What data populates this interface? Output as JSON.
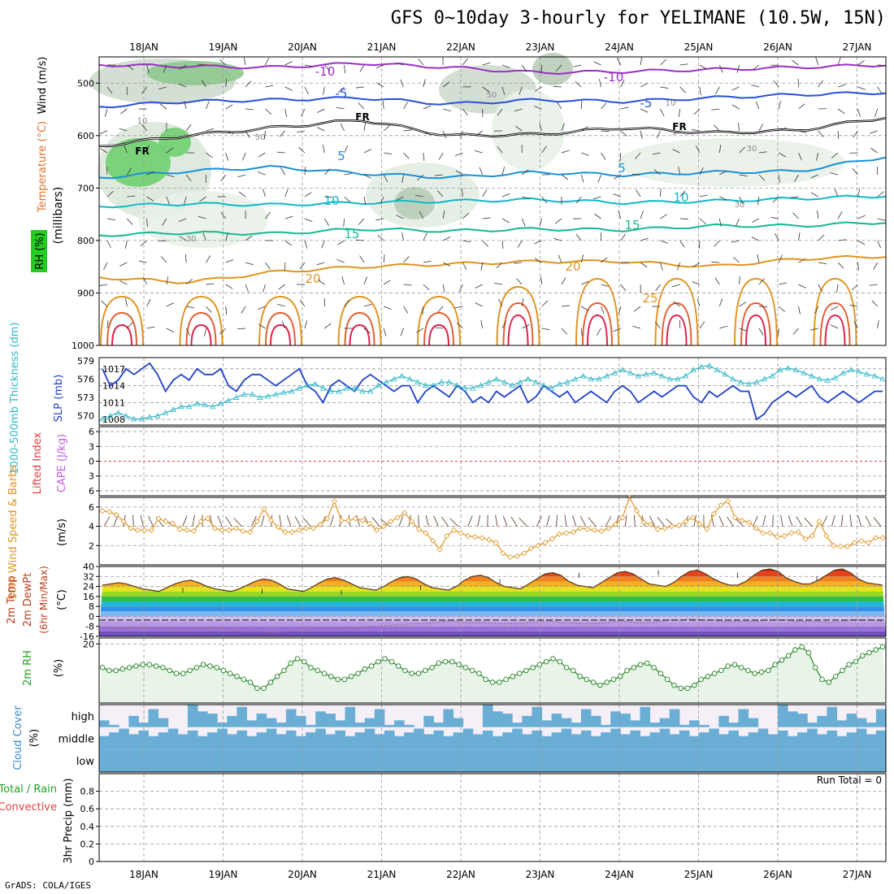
{
  "title": "GFS 0~10day 3-hourly for YELIMANE (10.5W, 15N)",
  "credit": "GrADS: COLA/IGES",
  "chart_data": [
    {
      "panel": "upper-air",
      "type": "line",
      "y_axis": {
        "label": "(millibars)",
        "ticks": [
          500,
          600,
          700,
          800,
          900,
          1000
        ],
        "range": [
          450,
          1000
        ]
      },
      "side_labels": [
        "Wind (m/s)",
        "Temperature (°C)",
        "RH (%)"
      ],
      "x_ticks": [
        "18JAN",
        "19JAN",
        "20JAN",
        "21JAN",
        "22JAN",
        "23JAN",
        "24JAN",
        "25JAN",
        "26JAN",
        "27JAN"
      ],
      "temperature_isotherms": [
        {
          "name": "-10",
          "color": "#9a2fc4",
          "level_mb": [
            465,
            468,
            470,
            462,
            470,
            480,
            478,
            474,
            470,
            465
          ]
        },
        {
          "name": "-5",
          "color": "#2850d8",
          "level_mb": [
            545,
            535,
            532,
            528,
            540,
            532,
            535,
            528,
            522,
            518
          ]
        },
        {
          "name": "FR",
          "color": "#000000",
          "level_mb": [
            620,
            600,
            585,
            570,
            600,
            598,
            585,
            595,
            590,
            565
          ]
        },
        {
          "name": "5",
          "color": "#1a90d8",
          "level_mb": [
            680,
            668,
            660,
            672,
            680,
            670,
            675,
            670,
            668,
            640
          ]
        },
        {
          "name": "10",
          "color": "#10b8c8",
          "level_mb": [
            735,
            730,
            732,
            728,
            725,
            722,
            728,
            725,
            720,
            715
          ]
        },
        {
          "name": "15",
          "color": "#16b890",
          "level_mb": [
            790,
            785,
            787,
            778,
            782,
            778,
            780,
            772,
            772,
            765
          ]
        },
        {
          "name": "20",
          "color": "#e09420",
          "level_mb": [
            870,
            880,
            860,
            850,
            845,
            840,
            840,
            850,
            835,
            830
          ]
        }
      ],
      "isotherm_labels": [
        "-10",
        "-5",
        "FR",
        "5",
        "10",
        "15",
        "20",
        "25"
      ],
      "rh_labels": [
        "10",
        "30",
        "50"
      ]
    },
    {
      "panel": "thickness-slp",
      "type": "line",
      "left_ticks": [
        570,
        573,
        576,
        579
      ],
      "right_ticks": [
        1008,
        1011,
        1014,
        1017
      ],
      "left_label": "1000-500mb Thickness (dm)",
      "right_label": "SLP (mb)",
      "series": [
        {
          "name": "SLP (mb)",
          "color": "#2040c8",
          "axis": "right",
          "values": [
            1017,
            1014,
            1015,
            1017,
            1016,
            1017,
            1018,
            1016,
            1013,
            1015,
            1016,
            1015,
            1017,
            1016,
            1016,
            1017,
            1014,
            1013,
            1015,
            1016,
            1016,
            1015,
            1014,
            1015,
            1016,
            1017,
            1014,
            1013,
            1011,
            1014,
            1015,
            1014,
            1013,
            1015,
            1016,
            1015,
            1014,
            1013,
            1014,
            1014,
            1011,
            1013,
            1014,
            1013,
            1012,
            1014,
            1013,
            1011,
            1012,
            1011,
            1013,
            1012,
            1013,
            1014,
            1011,
            1012,
            1014,
            1013,
            1012,
            1013,
            1011,
            1012,
            1013,
            1012,
            1011,
            1013,
            1014,
            1013,
            1011,
            1012,
            1013,
            1012,
            1013,
            1014,
            1014,
            1012,
            1011,
            1013,
            1012,
            1013,
            1014,
            1013,
            1013,
            1008,
            1009,
            1011,
            1012,
            1013,
            1012,
            1013,
            1014,
            1012,
            1011,
            1012,
            1013,
            1012,
            1011,
            1012,
            1013,
            1013
          ],
          "y_range": [
            1007,
            1019
          ]
        },
        {
          "name": "1000-500mb Thickness (dm)",
          "color": "#30b8c8",
          "axis": "left",
          "values": [
            569.5,
            570,
            570.5,
            570,
            569.5,
            569.5,
            569.8,
            570,
            570.5,
            571,
            571.5,
            571.5,
            572,
            571.8,
            571.5,
            572,
            572.5,
            573,
            573.5,
            573.5,
            573,
            573.2,
            573.5,
            573.8,
            574,
            574.5,
            575,
            575.2,
            574.5,
            574,
            574,
            574.5,
            574.5,
            574,
            574,
            575,
            575.5,
            576,
            576.5,
            576,
            575.5,
            575,
            575,
            575.5,
            575.5,
            575,
            574.5,
            574.5,
            575,
            575.5,
            576,
            575.5,
            575,
            575.5,
            576,
            575.5,
            575,
            574.5,
            575.2,
            575.5,
            576,
            576.5,
            576,
            576,
            576.5,
            577,
            577.5,
            577,
            576.5,
            576.8,
            577,
            576.5,
            576,
            576,
            576.5,
            577.5,
            578,
            578.2,
            577.5,
            576.8,
            576,
            575.5,
            575.2,
            575.5,
            576,
            576.5,
            577.5,
            577.8,
            577.5,
            577,
            576.5,
            576,
            575.8,
            576.2,
            577,
            577.5,
            577.2,
            576.8,
            576.5,
            576
          ],
          "y_range": [
            568.5,
            579.5
          ]
        }
      ]
    },
    {
      "panel": "stability",
      "type": "line",
      "left_label": "Lifted Index",
      "right_label": "CAPE (J/kg)",
      "y_ticks": [
        -6,
        -3,
        0,
        3,
        6
      ],
      "y_tick_labels": [
        "6",
        "3",
        "0",
        "3",
        "6"
      ],
      "zero_line": 0
    },
    {
      "panel": "wind10m",
      "type": "line",
      "left_label": "10m Wind Speed & Barbs",
      "unit": "(m/s)",
      "y_ticks": [
        2,
        4,
        6
      ],
      "y_range": [
        0,
        7
      ],
      "series": [
        {
          "name": "10m Wind Speed",
          "color": "#e09420",
          "values": [
            5.6,
            5.5,
            5.2,
            4.5,
            3.8,
            3.6,
            3.6,
            3.6,
            4.8,
            4.5,
            4.3,
            3.7,
            3.6,
            3.5,
            4.5,
            4.8,
            3.8,
            3.6,
            3.6,
            3.8,
            3.5,
            3.4,
            4.5,
            5.8,
            4.6,
            3.9,
            3.4,
            3.4,
            3.6,
            3.8,
            3.8,
            4.2,
            4.8,
            6.6,
            4.6,
            4.6,
            4.8,
            4.6,
            4.3,
            3.6,
            4.0,
            4.5,
            4.9,
            5.4,
            4.5,
            3.7,
            3.3,
            2.5,
            1.6,
            3.0,
            3.6,
            3.3,
            3.0,
            2.9,
            2.8,
            2.6,
            2.3,
            1.2,
            0.8,
            0.9,
            1.2,
            1.7,
            2.0,
            2.3,
            2.7,
            3.2,
            3.3,
            3.4,
            3.8,
            3.7,
            3.6,
            3.5,
            3.8,
            4.2,
            4.9,
            7.0,
            5.6,
            4.4,
            4.2,
            3.7,
            3.8,
            4.0,
            4.1,
            4.5,
            4.9,
            4.2,
            3.7,
            5.3,
            6.2,
            6.6,
            4.9,
            4.6,
            4.4,
            3.8,
            3.3,
            3.3,
            2.9,
            3.0,
            3.3,
            3.4,
            2.7,
            3.0,
            4.5,
            3.0,
            2.0,
            1.9,
            1.9,
            2.3,
            2.5,
            2.3,
            2.8,
            2.8
          ]
        }
      ]
    },
    {
      "panel": "temp2m",
      "type": "area",
      "left_label": "2m Temp 2m DewPt (6hr Min/Max) (°C)",
      "y_ticks": [
        40,
        32,
        24,
        16,
        8,
        0,
        -8,
        -16
      ],
      "y_range": [
        -16,
        40
      ],
      "series": [
        {
          "name": "2m Temp",
          "values": [
            25,
            26,
            27,
            26,
            24,
            22,
            21,
            20,
            23,
            26,
            28,
            29,
            27,
            24,
            22,
            21,
            20,
            22,
            25,
            28,
            30,
            29,
            26,
            22,
            21,
            20,
            23,
            27,
            30,
            31,
            29,
            26,
            23,
            22,
            21,
            24,
            28,
            31,
            32,
            30,
            26,
            23,
            22,
            21,
            24,
            29,
            32,
            33,
            31,
            27,
            24,
            23,
            22,
            26,
            30,
            34,
            35,
            33,
            28,
            25,
            24,
            23,
            27,
            31,
            35,
            36,
            34,
            30,
            26,
            25,
            24,
            27,
            32,
            36,
            37,
            34,
            30,
            27,
            25,
            25,
            28,
            33,
            37,
            38,
            36,
            31,
            28,
            26,
            26,
            29,
            33,
            37,
            38,
            35,
            30,
            27,
            26,
            25
          ]
        },
        {
          "name": "2m DewPt",
          "values": [
            -9,
            -9,
            -10,
            -9,
            -9,
            -10,
            -10,
            -11,
            -11,
            -10,
            -9,
            -10,
            -11,
            -12,
            -12,
            -12,
            -13,
            -12,
            -11,
            -11,
            -10,
            -10,
            -10,
            -9,
            -9,
            -8,
            -8,
            -7,
            -7,
            -6,
            -6,
            -5,
            -4,
            -4,
            -5,
            -5,
            -5,
            -6,
            -6,
            -6,
            -5,
            -4,
            -4,
            -5,
            -5,
            -6,
            -6,
            -5,
            -4,
            -4,
            -5,
            -5,
            -4,
            -3,
            -3,
            -2,
            -3,
            -3,
            -4,
            -4,
            -4,
            -4,
            -3,
            -3,
            -3,
            -4,
            -4,
            -4,
            -5,
            -4,
            -3,
            -3,
            -3,
            -4
          ]
        }
      ]
    },
    {
      "panel": "rh2m",
      "type": "line",
      "left_label": "2m RH",
      "unit": "(%)",
      "y_ticks": [
        20
      ],
      "y_range": [
        0,
        22
      ],
      "series": [
        {
          "name": "2m RH",
          "color": "#208020",
          "values": [
            12,
            11,
            11,
            11.5,
            12,
            12.5,
            13,
            13,
            12.5,
            12,
            11,
            10,
            10,
            11,
            12,
            13,
            12.5,
            12,
            11,
            10,
            9,
            8,
            7,
            5,
            5,
            7,
            9,
            11,
            13.5,
            15,
            14,
            12,
            11,
            10,
            9,
            8,
            8,
            9,
            10,
            11.5,
            12.5,
            14,
            15,
            14,
            12.5,
            11,
            10,
            10,
            11,
            12,
            13.5,
            14,
            14,
            13,
            12,
            11,
            10,
            8,
            7,
            7,
            8,
            9,
            10,
            11,
            12,
            13,
            14,
            15,
            14,
            12,
            11,
            9,
            8,
            7,
            6,
            7,
            8,
            9,
            11,
            12,
            13,
            13.5,
            12,
            10,
            8,
            6,
            5,
            5,
            6,
            8,
            9,
            10,
            11,
            12.5,
            13,
            12,
            11,
            10,
            10.5,
            11,
            13,
            14.5,
            16,
            18,
            19,
            17,
            12,
            8,
            7,
            9,
            11,
            13,
            14,
            16,
            17,
            18,
            19
          ]
        }
      ]
    },
    {
      "panel": "cloud",
      "type": "bar",
      "left_label": "Cloud Cover (%)",
      "levels": [
        "high",
        "middle",
        "low"
      ]
    },
    {
      "panel": "precip",
      "type": "bar",
      "left_label": "Total / Rain Convective",
      "axis_label": "3hr Precip (mm)",
      "y_ticks": [
        0,
        0.2,
        0.4,
        0.6,
        0.8
      ],
      "y_range": [
        0,
        1
      ],
      "run_total": "Run Total = 0",
      "x_ticks": [
        "18JAN",
        "19JAN",
        "20JAN",
        "21JAN",
        "22JAN",
        "23JAN",
        "24JAN",
        "25JAN",
        "26JAN",
        "27JAN"
      ]
    }
  ],
  "labels": {
    "wind_label": "Wind (m/s)",
    "temp_label": "Temperature (°C)",
    "rh_label": "RH (%)",
    "mb_label": "(millibars)",
    "thick_label": "1000-500mb Thickness (dm)",
    "slp_label": "SLP (mb)",
    "li_label": "Lifted Index",
    "cape_label": "CAPE (J/kg)",
    "wind10_label": "10m Wind Speed & Barbs",
    "wind10_unit": "(m/s)",
    "t2m_label1": "2m Temp",
    "t2m_label2": "2m DewPt",
    "t2m_label3": "(6hr Min/Max)",
    "t2m_unit": "(°C)",
    "rh2m_label": "2m RH",
    "rh2m_unit": "(%)",
    "cloud_label": "Cloud Cover",
    "cloud_unit": "(%)",
    "precip_label1": "Total / Rain",
    "precip_label2": "Convective",
    "precip_axis": "3hr Precip (mm)"
  },
  "colors": {
    "grid": "#999999",
    "slp": "#2040c8",
    "thickness": "#30b8c8",
    "wind10": "#e09420",
    "rh2m": "#208020",
    "rh2m_fill": "#e8f4e8",
    "cloud": "#6aaed6",
    "cloud_bg": "#f5f0f8",
    "zero_line": "#e04040"
  }
}
